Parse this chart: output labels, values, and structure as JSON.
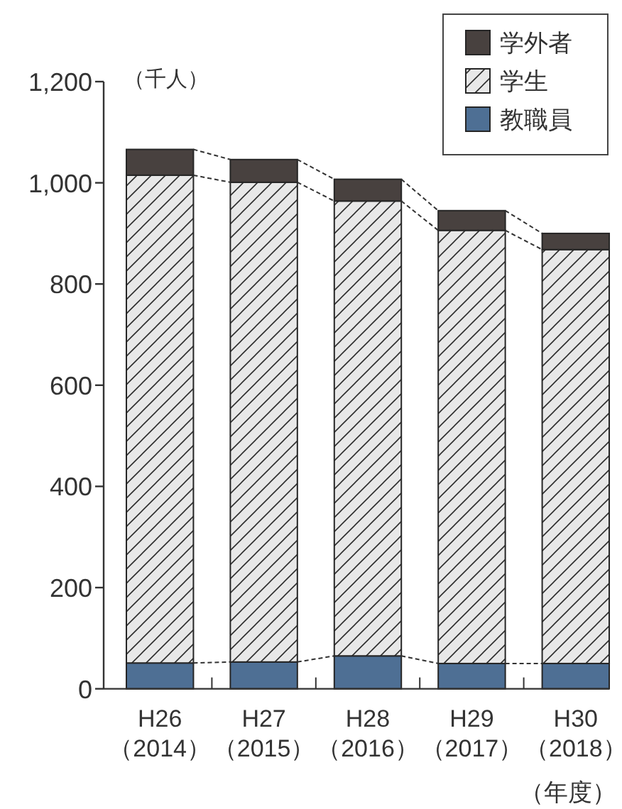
{
  "chart_data": {
    "type": "bar",
    "stacked": true,
    "categories": [
      "H26\n（2014）",
      "H27\n（2015）",
      "H28\n（2016）",
      "H29\n（2017）",
      "H30\n（2018）"
    ],
    "series": [
      {
        "name": "教職員",
        "color": "#4e6f94",
        "values": [
          51,
          53,
          65,
          50,
          50
        ]
      },
      {
        "name": "学生",
        "color": "#e8e8e8",
        "values": [
          964,
          948,
          899,
          856,
          818
        ]
      },
      {
        "name": "学外者",
        "color": "#48413f",
        "values": [
          51,
          45,
          43,
          39,
          32
        ]
      }
    ],
    "ylim": [
      0,
      1200
    ],
    "yticks": [
      0,
      200,
      400,
      600,
      800,
      {
        "value": 1000,
        "label": "1,000"
      },
      {
        "value": 1200,
        "label": "1,200"
      }
    ],
    "ylabel": "（千人）",
    "xlabel": "（年度）",
    "legend": "top right"
  }
}
